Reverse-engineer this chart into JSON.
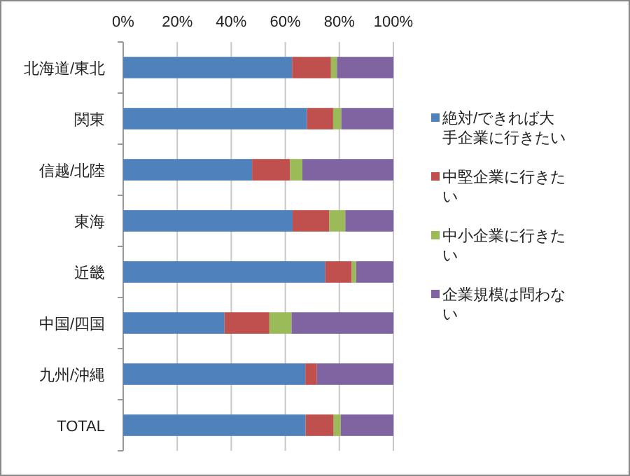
{
  "chart_data": {
    "type": "bar",
    "orientation": "horizontal",
    "stacked": true,
    "categories": [
      "北海道/東北",
      "関東",
      "信越/北陸",
      "東海",
      "近畿",
      "中国/四国",
      "九州/沖縄",
      "TOTAL"
    ],
    "series": [
      {
        "name": "絶対/できれば大手企業に行きたい",
        "color": "#4f81bd",
        "values": [
          62.5,
          68,
          47.7,
          62.7,
          74.8,
          37.5,
          67.4,
          67.5
        ]
      },
      {
        "name": "中堅企業に行きたい",
        "color": "#c0504d",
        "values": [
          14.4,
          9.7,
          14.1,
          13.6,
          9.8,
          16.6,
          4.3,
          10.4
        ]
      },
      {
        "name": "中小企業に行きたい",
        "color": "#9bbb59",
        "values": [
          2.2,
          3,
          4.5,
          5.9,
          1.6,
          8.2,
          0,
          2.6
        ]
      },
      {
        "name": "企業規模は問わない",
        "color": "#8064a2",
        "values": [
          20.9,
          19.3,
          33.7,
          17.8,
          13.8,
          37.7,
          28.3,
          19.5
        ]
      }
    ],
    "xlim": [
      0,
      100
    ],
    "xticks": [
      {
        "value": 0,
        "label": "0%"
      },
      {
        "value": 20,
        "label": "20%"
      },
      {
        "value": 40,
        "label": "40%"
      },
      {
        "value": 60,
        "label": "60%"
      },
      {
        "value": 80,
        "label": "80%"
      },
      {
        "value": 100,
        "label": "100%"
      }
    ],
    "grid": "x",
    "legend": "right"
  }
}
